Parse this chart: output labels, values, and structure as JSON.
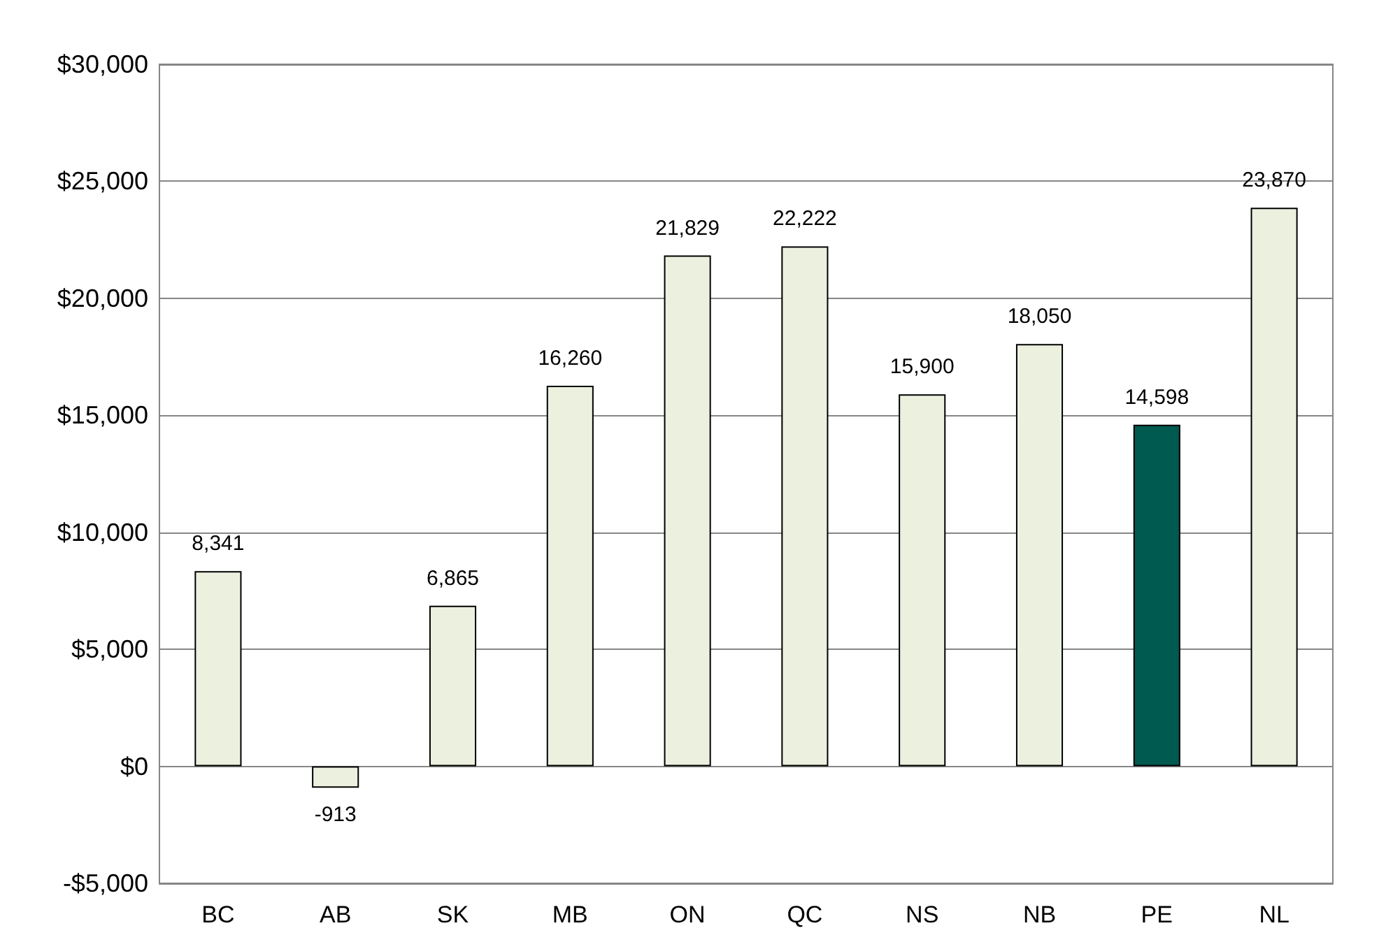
{
  "chart_data": {
    "type": "bar",
    "categories": [
      "BC",
      "AB",
      "SK",
      "MB",
      "ON",
      "QC",
      "NS",
      "NB",
      "PE",
      "NL"
    ],
    "values": [
      8341,
      -913,
      6865,
      16260,
      21829,
      22222,
      15900,
      18050,
      14598,
      23870
    ],
    "value_labels": [
      "8,341",
      "-913",
      "6,865",
      "16,260",
      "21,829",
      "22,222",
      "15,900",
      "18,050",
      "14,598",
      "23,870"
    ],
    "colors": [
      "#ebf1de",
      "#ebf1de",
      "#ebf1de",
      "#ebf1de",
      "#ebf1de",
      "#ebf1de",
      "#ebf1de",
      "#ebf1de",
      "#005a50",
      "#ebf1de"
    ],
    "ylim": [
      -5000,
      30000
    ],
    "yticks": [
      {
        "value": -5000,
        "label": "-$5,000"
      },
      {
        "value": 0,
        "label": "$0"
      },
      {
        "value": 5000,
        "label": "$5,000"
      },
      {
        "value": 10000,
        "label": "$10,000"
      },
      {
        "value": 15000,
        "label": "$15,000"
      },
      {
        "value": 20000,
        "label": "$20,000"
      },
      {
        "value": 25000,
        "label": "$25,000"
      },
      {
        "value": 30000,
        "label": "$30,000"
      }
    ],
    "grid": "y"
  }
}
